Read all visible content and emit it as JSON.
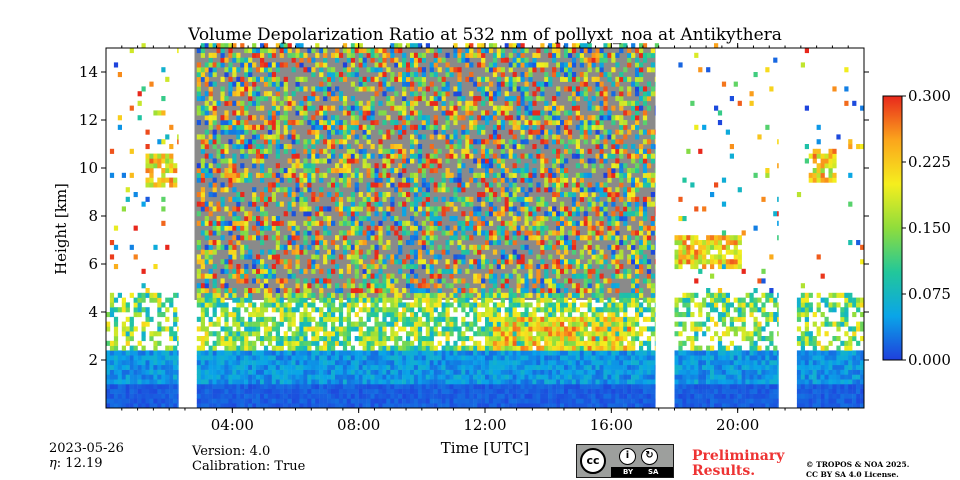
{
  "chart_data": {
    "type": "heatmap",
    "title": "Volume Depolarization Ratio at 532 nm of pollyxt_noa at Antikythera",
    "xlabel": "Time [UTC]",
    "ylabel": "Height [km]",
    "xlim_hours": [
      0,
      24
    ],
    "ylim": [
      0,
      15
    ],
    "x_ticks": [
      {
        "value": 4,
        "label": "04:00"
      },
      {
        "value": 8,
        "label": "08:00"
      },
      {
        "value": 12,
        "label": "12:00"
      },
      {
        "value": 16,
        "label": "16:00"
      },
      {
        "value": 20,
        "label": "20:00"
      }
    ],
    "y_ticks": [
      {
        "value": 2,
        "label": "2"
      },
      {
        "value": 4,
        "label": "4"
      },
      {
        "value": 6,
        "label": "6"
      },
      {
        "value": 8,
        "label": "8"
      },
      {
        "value": 10,
        "label": "10"
      },
      {
        "value": 12,
        "label": "12"
      },
      {
        "value": 14,
        "label": "14"
      }
    ],
    "colorbar": {
      "min": 0.0,
      "max": 0.3,
      "ticks": [
        "0.000",
        "0.075",
        "0.150",
        "0.225",
        "0.300"
      ],
      "colormap": "jet",
      "colors": [
        "#1f3fdc",
        "#0aa5e8",
        "#22c79a",
        "#8fdd3c",
        "#f5ee1e",
        "#fba51c",
        "#e8281c"
      ]
    },
    "missing_data_gaps_hours": [
      [
        2.3,
        2.8
      ],
      [
        17.4,
        17.9
      ],
      [
        21.3,
        21.8
      ]
    ],
    "aerosol_layer_top_km": 2.4,
    "elevated_features_km": [
      {
        "start_hour": 1.2,
        "end_hour": 2.2,
        "height": 9.8
      },
      {
        "start_hour": 12.2,
        "end_hour": 16.6,
        "height": 3.0
      },
      {
        "start_hour": 18.0,
        "end_hour": 20.0,
        "height": 6.4
      },
      {
        "start_hour": 22.2,
        "end_hour": 23.0,
        "height": 10.0
      }
    ]
  },
  "footer": {
    "date": "2023-05-26",
    "eta_label": "η",
    "eta_value": ": 12.19",
    "version": "Version: 4.0",
    "calibration": "Calibration: True",
    "preliminary_line1": "Preliminary",
    "preliminary_line2": "Results.",
    "copyright_line1": "© TROPOS & NOA 2025.",
    "copyright_line2": "CC BY SA 4.0 License.",
    "license_by": "BY",
    "license_sa": "SA"
  }
}
